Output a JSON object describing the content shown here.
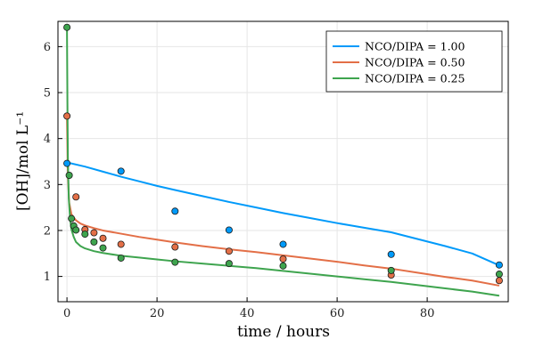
{
  "chart_data": {
    "type": "scatter",
    "title": "",
    "xlabel": "time / hours",
    "ylabel": "[OH]/mol L⁻¹",
    "xlim": [
      -2,
      98
    ],
    "ylim": [
      0.45,
      6.55
    ],
    "x_ticks": [
      0,
      20,
      40,
      60,
      80
    ],
    "y_ticks": [
      1,
      2,
      3,
      4,
      5,
      6
    ],
    "grid": true,
    "legend_position": "top-right",
    "series": [
      {
        "name": "NCO/DIPA = 1.00",
        "color": "#009AFA",
        "points": [
          [
            0,
            3.46
          ],
          [
            12,
            3.29
          ],
          [
            24,
            2.42
          ],
          [
            36,
            2.01
          ],
          [
            48,
            1.7
          ],
          [
            72,
            1.48
          ],
          [
            96,
            1.25
          ]
        ],
        "fit": [
          [
            0,
            3.48
          ],
          [
            4,
            3.39
          ],
          [
            8,
            3.28
          ],
          [
            12,
            3.17
          ],
          [
            16,
            3.07
          ],
          [
            20,
            2.97
          ],
          [
            24,
            2.88
          ],
          [
            30,
            2.75
          ],
          [
            36,
            2.62
          ],
          [
            42,
            2.5
          ],
          [
            48,
            2.38
          ],
          [
            54,
            2.27
          ],
          [
            60,
            2.16
          ],
          [
            66,
            2.06
          ],
          [
            72,
            1.96
          ],
          [
            78,
            1.81
          ],
          [
            84,
            1.66
          ],
          [
            90,
            1.5
          ],
          [
            96,
            1.24
          ]
        ]
      },
      {
        "name": "NCO/DIPA = 0.50",
        "color": "#E36F47",
        "points": [
          [
            0,
            4.49
          ],
          [
            2,
            2.73
          ],
          [
            4,
            2.02
          ],
          [
            6,
            1.95
          ],
          [
            8,
            1.83
          ],
          [
            12,
            1.7
          ],
          [
            24,
            1.64
          ],
          [
            36,
            1.55
          ],
          [
            48,
            1.38
          ],
          [
            72,
            1.03
          ],
          [
            96,
            0.91
          ]
        ],
        "fit": [
          [
            0,
            4.49
          ],
          [
            0.2,
            3.2
          ],
          [
            0.5,
            2.6
          ],
          [
            1,
            2.35
          ],
          [
            2,
            2.22
          ],
          [
            3,
            2.15
          ],
          [
            4,
            2.11
          ],
          [
            6,
            2.05
          ],
          [
            8,
            2.0
          ],
          [
            12,
            1.93
          ],
          [
            16,
            1.86
          ],
          [
            20,
            1.8
          ],
          [
            24,
            1.74
          ],
          [
            30,
            1.66
          ],
          [
            36,
            1.59
          ],
          [
            42,
            1.53
          ],
          [
            48,
            1.46
          ],
          [
            54,
            1.39
          ],
          [
            60,
            1.32
          ],
          [
            66,
            1.24
          ],
          [
            72,
            1.17
          ],
          [
            78,
            1.08
          ],
          [
            84,
            0.99
          ],
          [
            90,
            0.91
          ],
          [
            96,
            0.8
          ]
        ]
      },
      {
        "name": "NCO/DIPA = 0.25",
        "color": "#3EA44E",
        "points": [
          [
            0,
            6.42
          ],
          [
            0.5,
            3.2
          ],
          [
            1,
            2.26
          ],
          [
            1.5,
            2.1
          ],
          [
            2,
            2.01
          ],
          [
            4,
            1.92
          ],
          [
            6,
            1.75
          ],
          [
            8,
            1.62
          ],
          [
            12,
            1.4
          ],
          [
            24,
            1.31
          ],
          [
            36,
            1.28
          ],
          [
            48,
            1.23
          ],
          [
            72,
            1.13
          ],
          [
            96,
            1.05
          ]
        ],
        "fit": [
          [
            0,
            6.42
          ],
          [
            0.1,
            4.8
          ],
          [
            0.2,
            3.6
          ],
          [
            0.4,
            2.7
          ],
          [
            0.7,
            2.25
          ],
          [
            1,
            2.02
          ],
          [
            1.5,
            1.86
          ],
          [
            2,
            1.75
          ],
          [
            3,
            1.66
          ],
          [
            4,
            1.61
          ],
          [
            6,
            1.55
          ],
          [
            8,
            1.51
          ],
          [
            12,
            1.45
          ],
          [
            16,
            1.41
          ],
          [
            20,
            1.37
          ],
          [
            24,
            1.33
          ],
          [
            30,
            1.28
          ],
          [
            36,
            1.23
          ],
          [
            42,
            1.18
          ],
          [
            48,
            1.12
          ],
          [
            54,
            1.06
          ],
          [
            60,
            1.0
          ],
          [
            66,
            0.94
          ],
          [
            72,
            0.88
          ],
          [
            78,
            0.81
          ],
          [
            84,
            0.74
          ],
          [
            90,
            0.67
          ],
          [
            96,
            0.58
          ]
        ]
      }
    ]
  }
}
